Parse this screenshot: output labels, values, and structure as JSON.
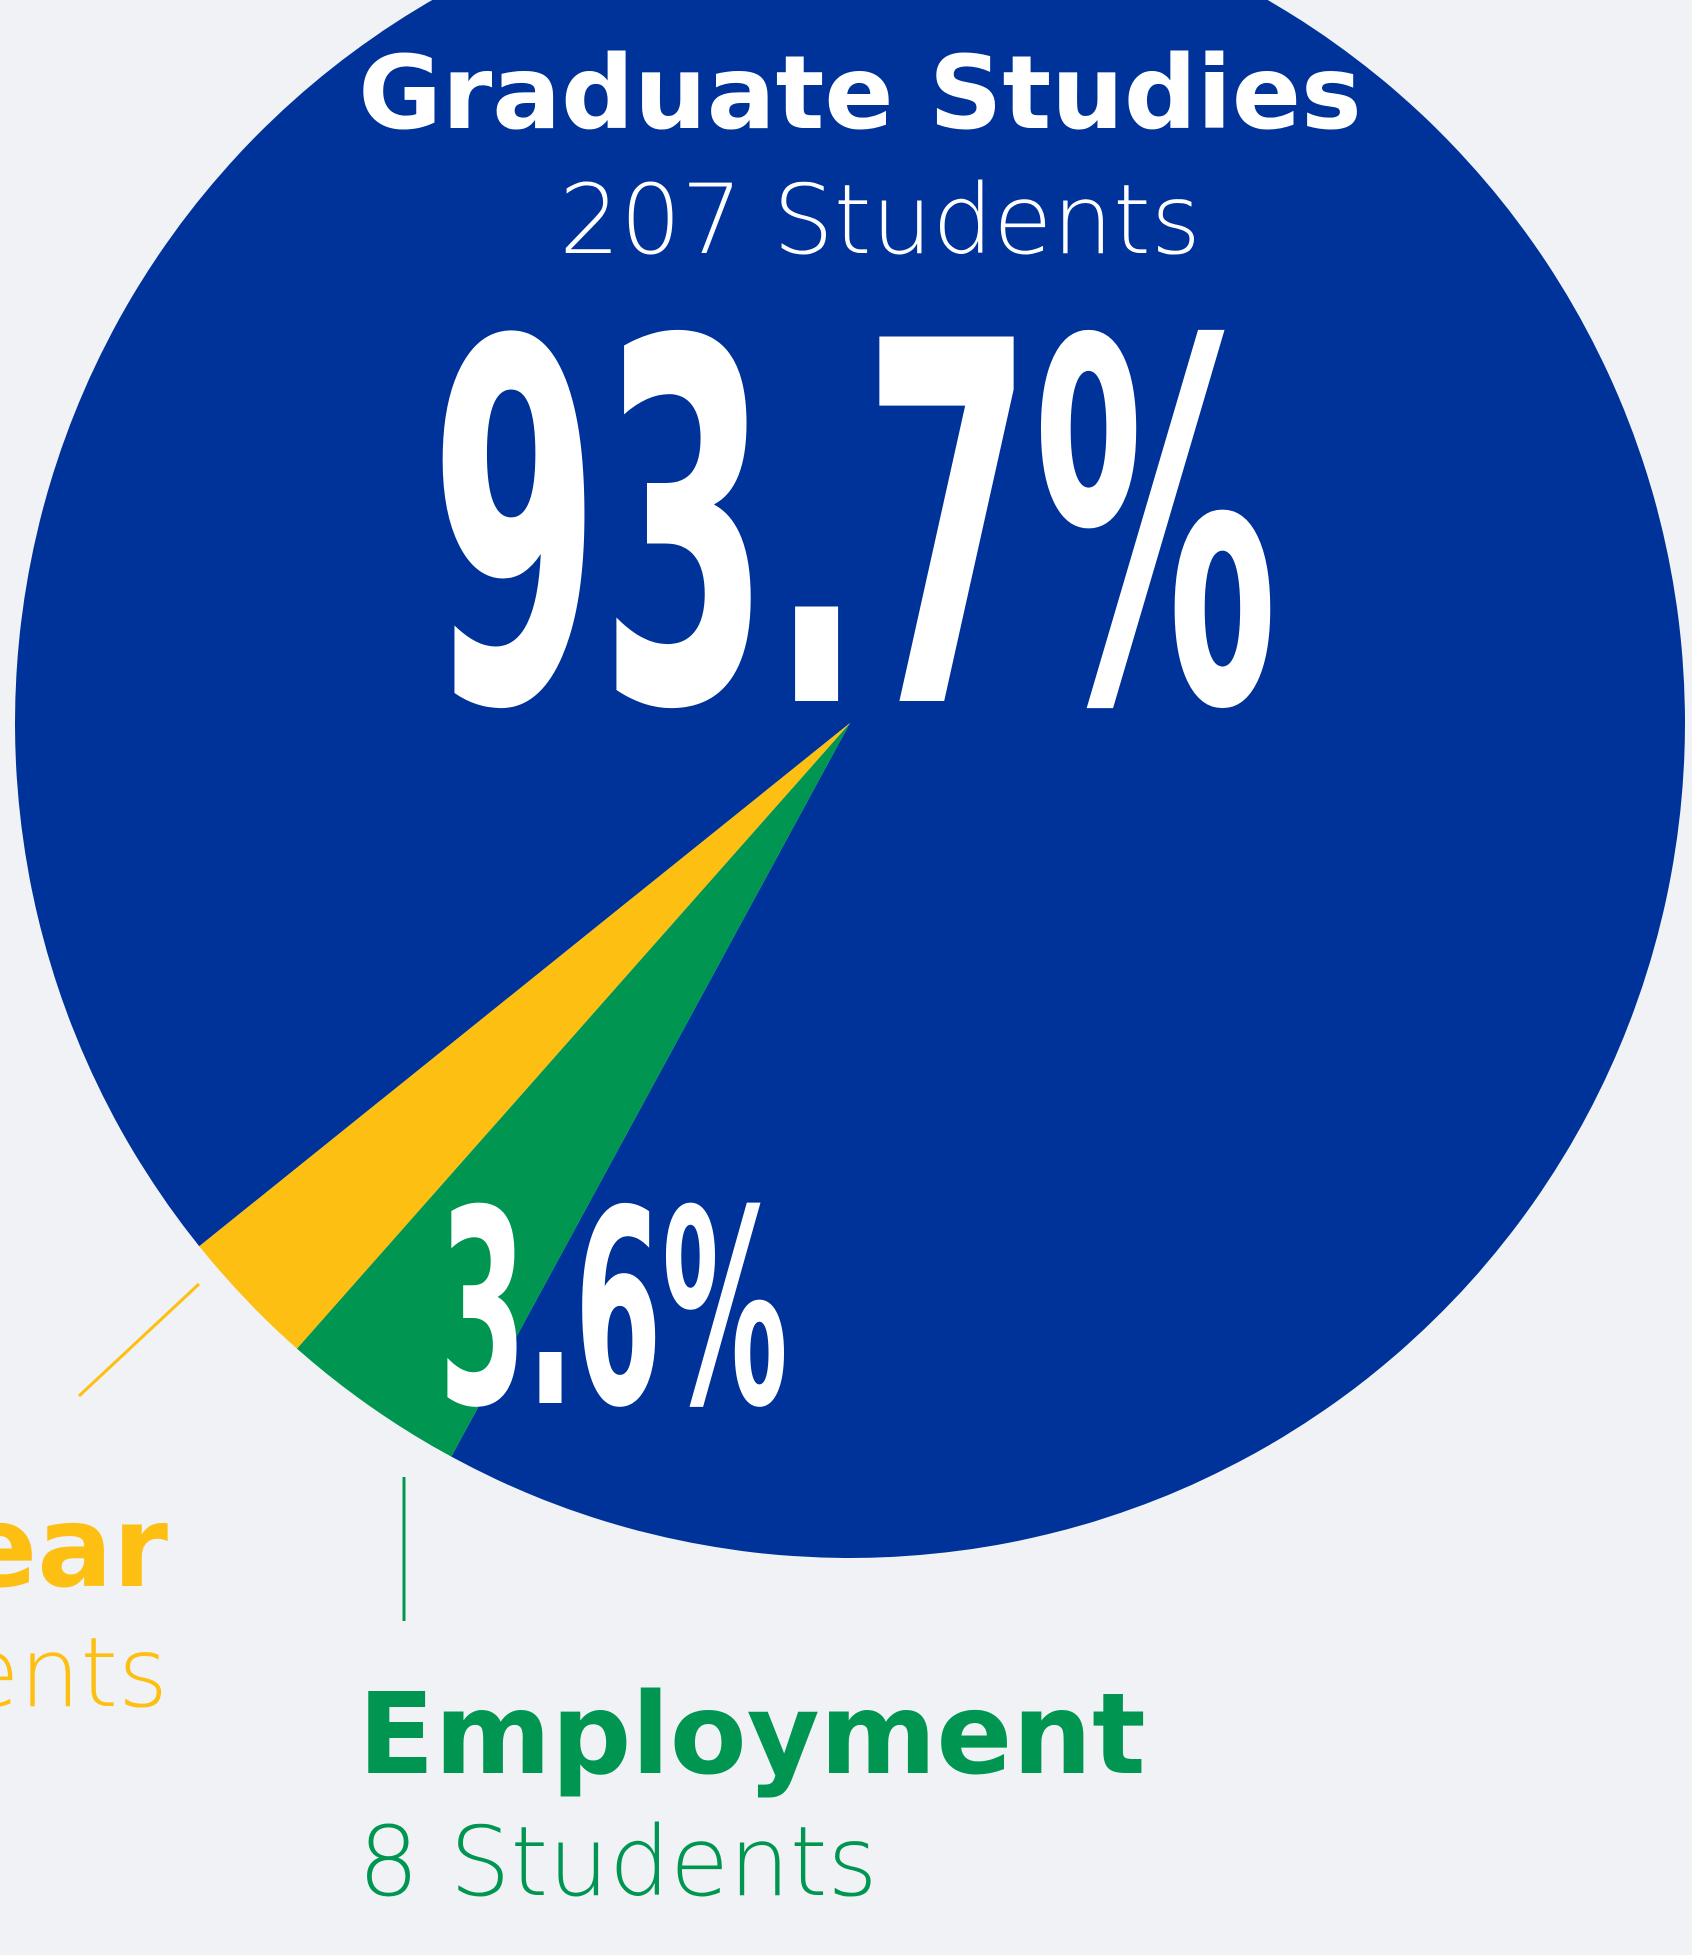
{
  "chart_data": {
    "type": "pie",
    "categories": [
      "Graduate Studies",
      "Employment",
      "ear"
    ],
    "sublabels": [
      "207 Students",
      "8 Students",
      "ents"
    ],
    "values": [
      93.7,
      3.6,
      2.7
    ],
    "value_labels": [
      "93.7%",
      "3.6%",
      null
    ],
    "colors": [
      "#003399",
      "#009651",
      "#fcbf12"
    ]
  }
}
